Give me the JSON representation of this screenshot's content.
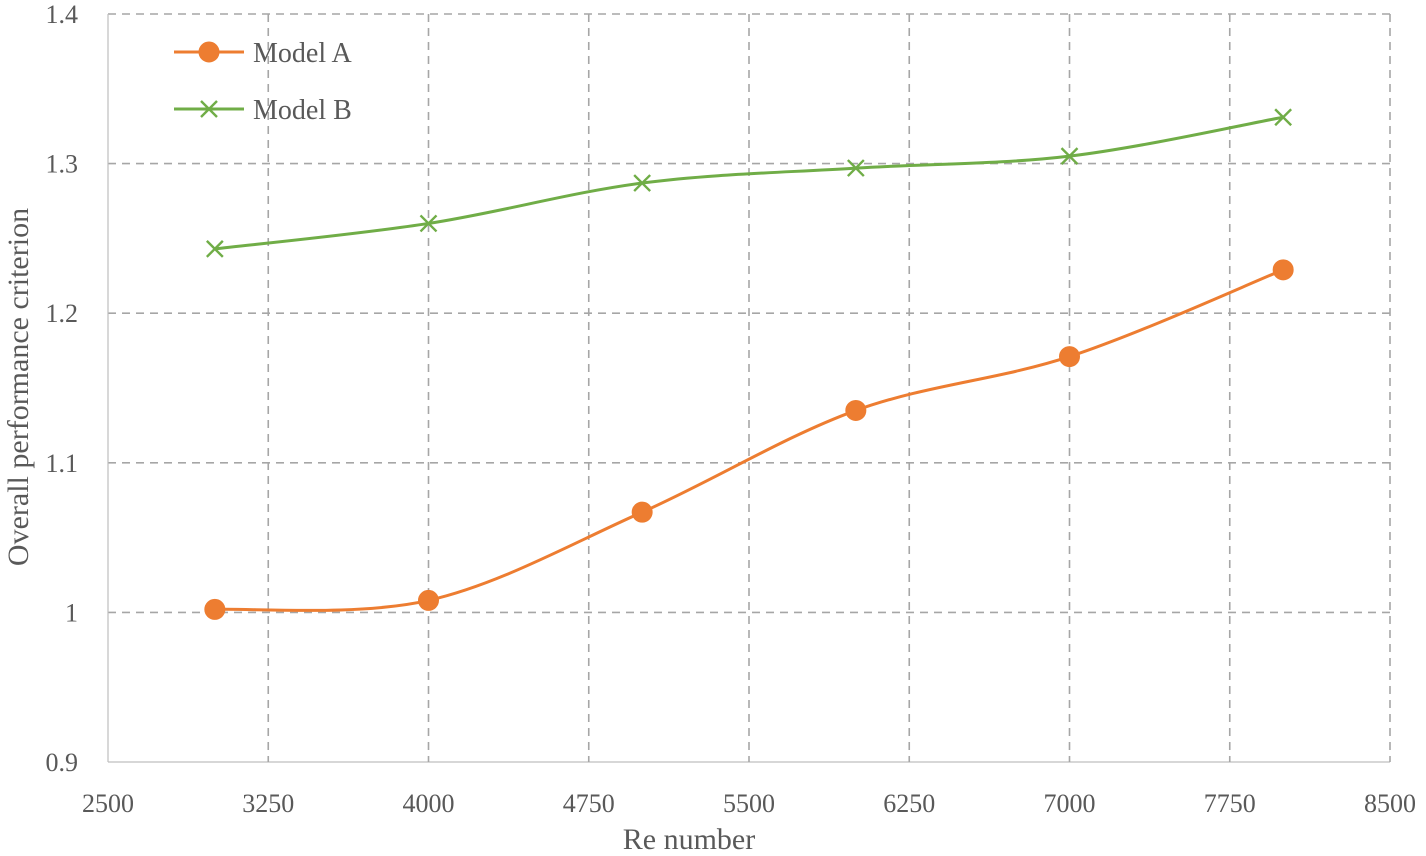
{
  "chart_data": {
    "type": "line",
    "xlabel": "Re number",
    "ylabel": "Overall performance criterion",
    "xlim": [
      2500,
      8500
    ],
    "ylim": [
      0.9,
      1.4
    ],
    "x_ticks": [
      "2500",
      "3250",
      "4000",
      "4750",
      "5500",
      "6250",
      "7000",
      "7750",
      "8500"
    ],
    "y_ticks": [
      "0.9",
      "1",
      "1.1",
      "1.2",
      "1.3",
      "1.4"
    ],
    "grid": true,
    "legend_position": "top-left",
    "series": [
      {
        "name": "Model A",
        "marker": "circle",
        "color": "#ed7d31",
        "x": [
          3000,
          4000,
          5000,
          6000,
          7000,
          8000
        ],
        "y": [
          1.002,
          1.008,
          1.067,
          1.135,
          1.171,
          1.229
        ]
      },
      {
        "name": "Model B",
        "marker": "x",
        "color": "#70ad47",
        "x": [
          3000,
          4000,
          5000,
          6000,
          7000,
          8000
        ],
        "y": [
          1.243,
          1.26,
          1.287,
          1.297,
          1.305,
          1.331
        ]
      }
    ]
  }
}
